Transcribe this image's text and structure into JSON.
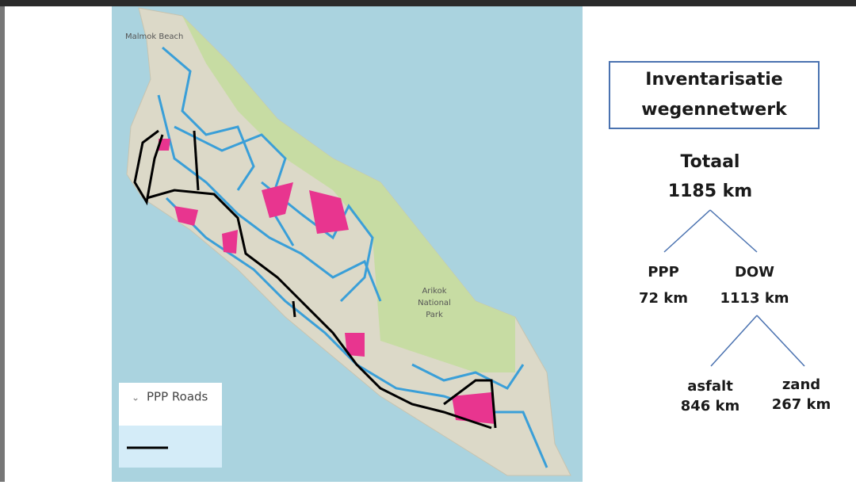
{
  "map": {
    "labels": [
      "Malmok Beach",
      "Arikok",
      "National",
      "Park"
    ],
    "legend": "PPP Roads"
  },
  "summary": {
    "title": [
      "Inventarisatie",
      "wegennetwerk"
    ],
    "total": {
      "label": "Totaal",
      "value": "1185 km"
    },
    "level1": [
      {
        "label": "PPP",
        "value": "72 km"
      },
      {
        "label": "DOW",
        "value": "1113 km"
      }
    ],
    "level2": [
      {
        "label": "asfalt",
        "value": "846 km"
      },
      {
        "label": "zand",
        "value": "267 km"
      }
    ]
  }
}
